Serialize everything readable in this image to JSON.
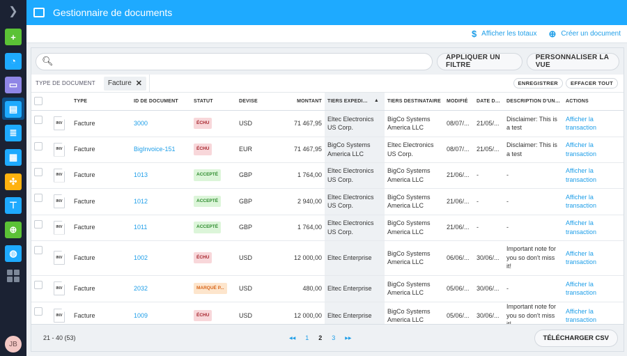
{
  "app": {
    "title": "Gestionnaire de documents"
  },
  "colors": {
    "accent": "#1eaaff",
    "sidebar": "#1b2233",
    "link": "#1e9ee8"
  },
  "sidebar": {
    "items": [
      {
        "icon": "plus-circle-icon",
        "color": "#5bc236"
      },
      {
        "icon": "dashboard-gauge-icon",
        "color": "#1eaaff"
      },
      {
        "icon": "chat-icon",
        "color": "#8f86e6"
      },
      {
        "icon": "document-archive-icon",
        "color": "#1eaaff",
        "active": true
      },
      {
        "icon": "clipboard-icon",
        "color": "#1eaaff"
      },
      {
        "icon": "building-icon",
        "color": "#1eaaff"
      },
      {
        "icon": "puzzle-icon",
        "color": "#ffb20f"
      },
      {
        "icon": "hierarchy-icon",
        "color": "#1eaaff"
      },
      {
        "icon": "document-add-icon",
        "color": "#5bc236"
      },
      {
        "icon": "globe-settings-icon",
        "color": "#1eaaff"
      }
    ],
    "avatar": "JB"
  },
  "subbar": {
    "show_totals": "Afficher les totaux",
    "create_document": "Créer un document"
  },
  "toolbar": {
    "search_value": "",
    "apply_filter": "APPLIQUER UN FILTRE",
    "customize_view": "PERSONNALISER LA VUE"
  },
  "filters": {
    "label": "TYPE DE DOCUMENT",
    "chip": "Facture",
    "save": "ENREGISTRER",
    "clear_all": "EFFACER TOUT"
  },
  "table": {
    "columns": [
      "TYPE",
      "ID DE DOCUMENT",
      "STATUT",
      "DEVISE",
      "MONTANT",
      "TIERS EXPÉDITEUR",
      "TIERS DESTINATAIRE",
      "MODIFIÉ",
      "DATE D'ÉCHÉANCE",
      "DESCRIPTION D'UNE NOTE",
      "ACTIONS"
    ],
    "sort_column": "TIERS EXPÉDITEUR",
    "sort_dir": "asc",
    "rows": [
      {
        "icon": "INV",
        "type": "Facture",
        "id": "3000",
        "status": "ÉCHU",
        "status_kind": "echu",
        "currency": "USD",
        "amount": "71 467,95",
        "sender": "Eltec Electronics US Corp.",
        "recipient": "BigCo Systems America LLC",
        "modified": "08/07/...",
        "due": "21/05/...",
        "note": "Disclaimer: This is a test",
        "action": "Afficher la transaction"
      },
      {
        "icon": "INV",
        "type": "Facture",
        "id": "BigInvoice-151",
        "status": "ÉCHU",
        "status_kind": "echu",
        "currency": "EUR",
        "amount": "71 467,95",
        "sender": "BigCo Systems America LLC",
        "recipient": "Eltec Electronics US Corp.",
        "modified": "08/07/...",
        "due": "21/05/...",
        "note": "Disclaimer: This is a test",
        "action": "Afficher la transaction"
      },
      {
        "icon": "INV",
        "type": "Facture",
        "id": "1013",
        "status": "ACCEPTÉ",
        "status_kind": "acc",
        "currency": "GBP",
        "amount": "1 764,00",
        "sender": "Eltec Electronics US Corp.",
        "recipient": "BigCo Systems America LLC",
        "modified": "21/06/...",
        "due": "-",
        "note": "-",
        "action": "Afficher la transaction"
      },
      {
        "icon": "INV",
        "type": "Facture",
        "id": "1012",
        "status": "ACCEPTÉ",
        "status_kind": "acc",
        "currency": "GBP",
        "amount": "2 940,00",
        "sender": "Eltec Electronics US Corp.",
        "recipient": "BigCo Systems America LLC",
        "modified": "21/06/...",
        "due": "-",
        "note": "-",
        "action": "Afficher la transaction"
      },
      {
        "icon": "INV",
        "type": "Facture",
        "id": "1011",
        "status": "ACCEPTÉ",
        "status_kind": "acc",
        "currency": "GBP",
        "amount": "1 764,00",
        "sender": "Eltec Electronics US Corp.",
        "recipient": "BigCo Systems America LLC",
        "modified": "21/06/...",
        "due": "-",
        "note": "-",
        "action": "Afficher la transaction"
      },
      {
        "icon": "INV",
        "type": "Facture",
        "id": "1002",
        "status": "ÉCHU",
        "status_kind": "echu",
        "currency": "USD",
        "amount": "12 000,00",
        "sender": "Eltec Enterprise",
        "recipient": "BigCo Systems America LLC",
        "modified": "06/06/...",
        "due": "30/06/...",
        "note": "Important note for you so don't miss it!",
        "action": "Afficher la transaction"
      },
      {
        "icon": "INV",
        "type": "Facture",
        "id": "2032",
        "status": "MARQUÉ P...",
        "status_kind": "mar",
        "currency": "USD",
        "amount": "480,00",
        "sender": "Eltec Enterprise",
        "recipient": "BigCo Systems America LLC",
        "modified": "05/06/...",
        "due": "30/06/...",
        "note": "-",
        "action": "Afficher la transaction"
      },
      {
        "icon": "INV",
        "type": "Facture",
        "id": "1009",
        "status": "ÉCHU",
        "status_kind": "echu",
        "currency": "USD",
        "amount": "12 000,00",
        "sender": "Eltec Enterprise",
        "recipient": "BigCo Systems America LLC",
        "modified": "05/06/...",
        "due": "30/06/...",
        "note": "Important note for you so don't miss it!",
        "action": "Afficher la transaction"
      }
    ]
  },
  "footer": {
    "range": "21 - 40 (53)",
    "pages": [
      "1",
      "2",
      "3"
    ],
    "current_page": "2",
    "download_csv": "TÉLÉCHARGER CSV"
  }
}
